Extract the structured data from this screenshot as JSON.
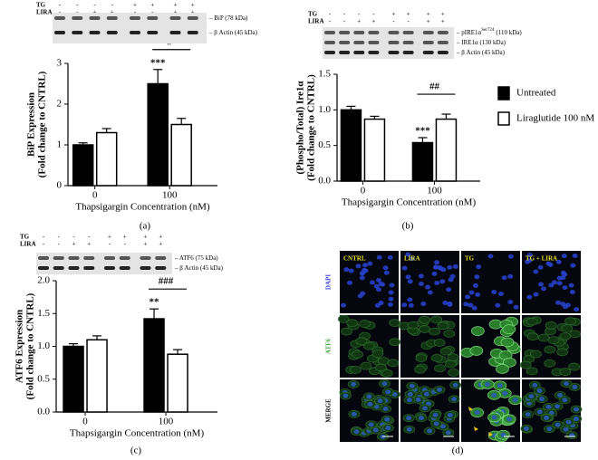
{
  "chart_data": [
    {
      "type": "bar",
      "ylabel": [
        "BiP Expression",
        "(Fold change to CNTRL)"
      ],
      "xlabel": "Thapsigargin Concentration (nM)",
      "categories": [
        "0",
        "100"
      ],
      "ylim": [
        0,
        3
      ],
      "yticks": [
        0,
        1,
        2,
        3
      ],
      "series": [
        {
          "color": "#000000",
          "values": [
            1.0,
            2.5
          ],
          "errors": [
            0.05,
            0.35
          ]
        },
        {
          "color": "#ffffff",
          "values": [
            1.3,
            1.5
          ],
          "errors": [
            0.1,
            0.15
          ]
        }
      ],
      "annotations": [
        "***",
        "#"
      ]
    },
    {
      "type": "bar",
      "ylabel": [
        "(Phospho/Total) Ire1α",
        "(Fold change to CNTRL)"
      ],
      "xlabel": "Thapsigargin Concentration (nM)",
      "categories": [
        "0",
        "100"
      ],
      "ylim": [
        0,
        1.5
      ],
      "yticks": [
        {
          "value": 0,
          "label": "0.0"
        },
        0.5,
        {
          "value": 1,
          "label": "1.0"
        },
        1.5
      ],
      "series": [
        {
          "name": "Untreated",
          "color": "#000000",
          "values": [
            1.0,
            0.54
          ],
          "errors": [
            0.05,
            0.07
          ]
        },
        {
          "name": "Liraglutide 100 nM",
          "color": "#ffffff",
          "values": [
            0.87,
            0.87
          ],
          "errors": [
            0.04,
            0.07
          ]
        }
      ],
      "annotations": [
        "***",
        "##"
      ]
    },
    {
      "type": "bar",
      "ylabel": [
        "ATF6 Expression",
        "(Fold change to CNTRL)"
      ],
      "xlabel": "Thapsigargin Concentration (nM)",
      "categories": [
        "0",
        "100"
      ],
      "ylim": [
        0,
        2
      ],
      "yticks": [
        {
          "value": 0,
          "label": "0.0"
        },
        0.5,
        {
          "value": 1,
          "label": "1.0"
        },
        1.5,
        {
          "value": 2,
          "label": "2.0"
        }
      ],
      "series": [
        {
          "color": "#000000",
          "values": [
            1.0,
            1.42
          ],
          "errors": [
            0.04,
            0.15
          ]
        },
        {
          "color": "#ffffff",
          "values": [
            1.1,
            0.88
          ],
          "errors": [
            0.06,
            0.07
          ]
        }
      ],
      "annotations": [
        "**",
        "###"
      ]
    }
  ],
  "blots": [
    {
      "rows": [
        "TG",
        "LIRA"
      ],
      "signs": [
        [
          "-",
          "-",
          "-",
          "-",
          "+",
          "+",
          "+",
          "+"
        ],
        [
          "-",
          "-",
          "+",
          "+",
          "-",
          "-",
          "+",
          "+"
        ]
      ],
      "bands": [
        {
          "text": "– BiP (78 kDa)"
        },
        {
          "text": "– β Actin (45 kDa)"
        }
      ]
    },
    {
      "rows": [
        "TG",
        "LIRA"
      ],
      "signs": [
        [
          "-",
          "-",
          "-",
          "-",
          "+",
          "+",
          "+",
          "+"
        ],
        [
          "-",
          "-",
          "+",
          "+",
          "-",
          "-",
          "+",
          "+"
        ]
      ],
      "bands": [
        {
          "text": "– pIRE1α",
          "sup": "Ser724",
          "after": "(110 kDa)"
        },
        {
          "text": "– IRE1α (130 kDa)"
        },
        {
          "text": "– β Actin (45 kDa)"
        }
      ]
    },
    {
      "rows": [
        "TG",
        "LIRA"
      ],
      "signs": [
        [
          "-",
          "-",
          "-",
          "-",
          "+",
          "+",
          "+",
          "+"
        ],
        [
          "-",
          "-",
          "+",
          "+",
          "-",
          "-",
          "+",
          "+"
        ]
      ],
      "bands": [
        {
          "text": "– ATF6 (75 kDa)"
        },
        {
          "text": "– β Actin (45 kDa)"
        }
      ]
    }
  ],
  "microscopy": {
    "columns": [
      "CNTRL",
      "LIRA",
      "TG",
      "TG + LIRA"
    ],
    "rows": [
      "DAPI",
      "ATF6",
      "MERGE"
    ]
  },
  "captions": [
    "(a)",
    "(b)",
    "(c)",
    "(d)"
  ]
}
